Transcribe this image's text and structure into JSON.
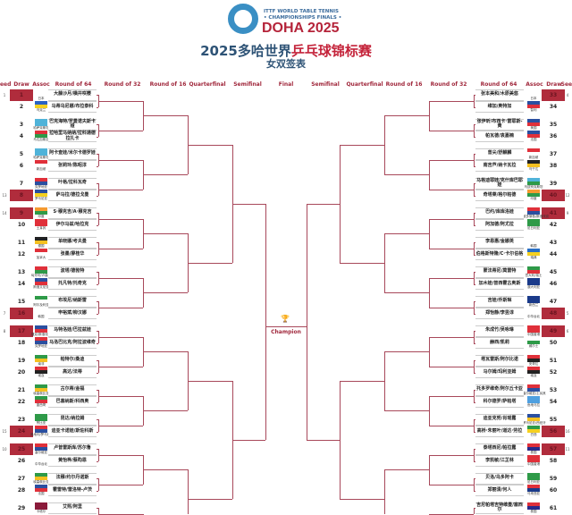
{
  "header": {
    "logo_line1": "ITTF WORLD TABLE TENNIS",
    "logo_line2": "• CHAMPIONSHIPS FINALS •",
    "logo_line3": "DOHA 2025",
    "title_prefix": "2025多哈世界",
    "title_highlight": "乒乓球锦标赛",
    "subtitle": "女双签表"
  },
  "columns": [
    "Seed",
    "Draw",
    "Assoc",
    "Round of 64",
    "Round of 32",
    "Round of 16",
    "Quarterfinal",
    "Semifinal",
    "Final",
    "Semifinal",
    "Quarterfinal",
    "Round of 16",
    "Round of 32",
    "Round of 64",
    "Assoc",
    "Draw",
    "Seed"
  ],
  "center": {
    "trophy_icon": "trophy-icon",
    "champion": "Champion"
  },
  "colors": {
    "accent": "#a0283c",
    "seed_box": "#b02c3c",
    "title": "#2e5376"
  },
  "left": [
    {
      "draw": "1",
      "seed": "1",
      "name": "大藤沙月/横井咲樱",
      "assoc": "日本",
      "flag": [
        "#ffffff",
        "#ffffff"
      ]
    },
    {
      "draw": "2",
      "seed": "",
      "name": "马蒂乌尼娜/布拉泰科",
      "assoc": "乌克兰",
      "flag": [
        "#2a62c4",
        "#f5d020"
      ]
    },
    {
      "draw": "3",
      "seed": "",
      "name": "巴克海特/罗曼诺夫斯卡娅",
      "assoc": "哈萨克斯坦",
      "flag": [
        "#4fb3d9",
        "#4fb3d9"
      ]
    },
    {
      "draw": "4",
      "seed": "",
      "name": "拉哈里马纳纳/拉科通德拉扎卡",
      "assoc": "马达加斯加",
      "flag": [
        "#e0303a",
        "#2e9a48"
      ]
    },
    {
      "draw": "5",
      "seed": "",
      "name": "阿卡查娃/米尔卡德罗娃",
      "assoc": "哈萨克斯坦",
      "flag": [
        "#4fb3d9",
        "#4fb3d9"
      ]
    },
    {
      "draw": "6",
      "seed": "",
      "name": "张莉玲/陈昭淳",
      "assoc": "新加坡",
      "flag": [
        "#e0303a",
        "#ffffff"
      ]
    },
    {
      "draw": "7",
      "seed": "",
      "name": "叶格/拉科瓦奇",
      "assoc": "克罗地亚",
      "flag": [
        "#e0303a",
        "#2a4fa0"
      ]
    },
    {
      "draw": "8",
      "seed": "13",
      "name": "萨马拉/德拉戈曼",
      "assoc": "罗马尼亚",
      "flag": [
        "#2a4fa0",
        "#f5d020"
      ]
    },
    {
      "draw": "9",
      "seed": "14",
      "name": "S·穆克吉/A·穆克吉",
      "assoc": "印度",
      "flag": [
        "#f59a30",
        "#2e9a48"
      ]
    },
    {
      "draw": "10",
      "seed": "",
      "name": "伊尔马兹/哈拉克",
      "assoc": "土耳其",
      "flag": [
        "#e0303a",
        "#e0303a"
      ]
    },
    {
      "draw": "11",
      "seed": "",
      "name": "单晓娜/考夫曼",
      "assoc": "德国",
      "flag": [
        "#222222",
        "#f5c020"
      ]
    },
    {
      "draw": "12",
      "seed": "",
      "name": "张墨/廖桂华",
      "assoc": "加拿大",
      "flag": [
        "#e0303a",
        "#ffffff"
      ]
    },
    {
      "draw": "13",
      "seed": "",
      "name": "波塔/德勃特",
      "assoc": "匈牙利/卢森堡",
      "flag": [
        "#e0303a",
        "#2e9a48"
      ]
    },
    {
      "draw": "14",
      "seed": "",
      "name": "托凡特/托奇克",
      "assoc": "斯洛文尼亚",
      "flag": [
        "#2a4fa0",
        "#e0303a"
      ]
    },
    {
      "draw": "15",
      "seed": "",
      "name": "布埃尼/纳斯雷",
      "assoc": "阿尔及利亚",
      "flag": [
        "#2e9a48",
        "#ffffff"
      ]
    },
    {
      "draw": "16",
      "seed": "7",
      "name": "申裕斌/柳汉娜",
      "assoc": "韩国",
      "flag": [
        "#ffffff",
        "#ffffff"
      ]
    },
    {
      "draw": "17",
      "seed": "8",
      "name": "马特洛娃/巴拉兹娃",
      "assoc": "捷克/斯洛伐克",
      "flag": [
        "#2a4fa0",
        "#e0303a"
      ]
    },
    {
      "draw": "18",
      "seed": "",
      "name": "马洛巴比克/阿拉波维奇",
      "assoc": "克罗地亚",
      "flag": [
        "#e0303a",
        "#2a4fa0"
      ]
    },
    {
      "draw": "19",
      "seed": "",
      "name": "帕特尔/桑迪",
      "assoc": "南非",
      "flag": [
        "#2e9a48",
        "#f5c020"
      ]
    },
    {
      "draw": "20",
      "seed": "",
      "name": "高达/法蒂",
      "assoc": "埃及",
      "flag": [
        "#e0303a",
        "#222222"
      ]
    },
    {
      "draw": "21",
      "seed": "",
      "name": "古尔蒂/金福",
      "assoc": "埃塞俄比亚",
      "flag": [
        "#2e9a48",
        "#f5c020"
      ]
    },
    {
      "draw": "22",
      "seed": "",
      "name": "巴塞纳斯/科西奥",
      "assoc": "墨西哥",
      "flag": [
        "#2e9a48",
        "#e0303a"
      ]
    },
    {
      "draw": "23",
      "seed": "",
      "name": "昆达/纳拉姆",
      "assoc": "赞比亚",
      "flag": [
        "#2e9a48",
        "#2e9a48"
      ]
    },
    {
      "draw": "24",
      "seed": "15",
      "name": "迪亚卡诺娃/斯佐科斯",
      "assoc": "奥地利/罗马尼亚",
      "flag": [
        "#e0303a",
        "#2a4fa0"
      ]
    },
    {
      "draw": "25",
      "seed": "10",
      "name": "卢普雷斯库/苏尔鲁",
      "assoc": "塞尔维亚",
      "flag": [
        "#e0303a",
        "#2a4fa0"
      ]
    },
    {
      "draw": "26",
      "seed": "",
      "name": "黄怡桦/蔡昀恩",
      "assoc": "中华台北",
      "flag": [
        "#ffffff",
        "#ffffff"
      ]
    },
    {
      "draw": "27",
      "seed": "",
      "name": "法穆/约尔丹诺斯",
      "assoc": "埃塞俄比亚",
      "flag": [
        "#2e9a48",
        "#f5c020"
      ]
    },
    {
      "draw": "28",
      "seed": "",
      "name": "霍雷特/雷洛特-卢茨",
      "assoc": "法国",
      "flag": [
        "#2a4fa0",
        "#e0303a"
      ]
    },
    {
      "draw": "29",
      "seed": "",
      "name": "艾熙/阿里",
      "assoc": "卡塔尔",
      "flag": [
        "#8a1a3a",
        "#8a1a3a"
      ]
    }
  ],
  "right": [
    {
      "draw": "33",
      "seed": "4",
      "name": "张本美和/木原美悠",
      "assoc": "日本",
      "flag": [
        "#ffffff",
        "#ffffff"
      ]
    },
    {
      "draw": "34",
      "seed": "",
      "name": "维加/奥特加",
      "assoc": "智利",
      "flag": [
        "#2a4fa0",
        "#e0303a"
      ]
    },
    {
      "draw": "35",
      "seed": "",
      "name": "张伊昕/布西卡·雷耶斯-黄",
      "assoc": "美国",
      "flag": [
        "#2a4fa0",
        "#e0303a"
      ]
    },
    {
      "draw": "36",
      "seed": "",
      "name": "帕瓦德/袁嘉楠",
      "assoc": "法国",
      "flag": [
        "#2a4fa0",
        "#e0303a"
      ]
    },
    {
      "draw": "37",
      "seed": "",
      "name": "曾尖/舒麒麟",
      "assoc": "新加坡",
      "flag": [
        "#e0303a",
        "#ffffff"
      ]
    },
    {
      "draw": "38",
      "seed": "",
      "name": "南吉芦/纳卡瓦拉",
      "assoc": "乌干达",
      "flag": [
        "#222222",
        "#f5c020"
      ]
    },
    {
      "draw": "39",
      "seed": "",
      "name": "马格迪耶娃/克什库巴耶娃",
      "assoc": "乌兹别克斯坦",
      "flag": [
        "#4fb3d9",
        "#2e9a48"
      ]
    },
    {
      "draw": "40",
      "seed": "12",
      "name": "奇塔莱/格尔帕德",
      "assoc": "印度",
      "flag": [
        "#f59a30",
        "#2e9a48"
      ]
    },
    {
      "draw": "41",
      "seed": "9",
      "name": "巴约/库库洛娃",
      "assoc": "波多黎各/斯洛伐克",
      "flag": [
        "#e0303a",
        "#2a4fa0"
      ]
    },
    {
      "draw": "42",
      "seed": "",
      "name": "阿加德/阿尤拉",
      "assoc": "尼日利亚",
      "flag": [
        "#2e9a48",
        "#2e9a48"
      ]
    },
    {
      "draw": "43",
      "seed": "",
      "name": "李恩惠/金娜英",
      "assoc": "韩国",
      "flag": [
        "#ffffff",
        "#ffffff"
      ]
    },
    {
      "draw": "44",
      "seed": "",
      "name": "伯格斯特隆/C·卡尔伯格",
      "assoc": "瑞典",
      "flag": [
        "#2a6fc4",
        "#f5d020"
      ]
    },
    {
      "draw": "45",
      "seed": "",
      "name": "蒙法蒂尼/莫雷特",
      "assoc": "意大利/瑞士",
      "flag": [
        "#2e9a48",
        "#e0303a"
      ]
    },
    {
      "draw": "46",
      "seed": "",
      "name": "加木娃/普西霍古奥斯",
      "assoc": "澳大利亚",
      "flag": [
        "#1a3a8a",
        "#1a3a8a"
      ]
    },
    {
      "draw": "47",
      "seed": "",
      "name": "吉娃/乔斯琳",
      "assoc": "新西兰",
      "flag": [
        "#1a3a8a",
        "#1a3a8a"
      ]
    },
    {
      "draw": "48",
      "seed": "5",
      "name": "郑怡静/李昱谆",
      "assoc": "中华台北",
      "flag": [
        "#ffffff",
        "#ffffff"
      ]
    },
    {
      "draw": "49",
      "seed": "6",
      "name": "朱成竹/吴咏琳",
      "assoc": "中国香港",
      "flag": [
        "#e0303a",
        "#e0303a"
      ]
    },
    {
      "draw": "50",
      "seed": "",
      "name": "赫西/凯莉",
      "assoc": "威尔士",
      "flag": [
        "#ffffff",
        "#2e9a48"
      ]
    },
    {
      "draw": "51",
      "seed": "",
      "name": "塔瓦雷斯/阿尔比诺",
      "assoc": "安哥拉",
      "flag": [
        "#e0303a",
        "#222222"
      ]
    },
    {
      "draw": "52",
      "seed": "",
      "name": "马尔姆/玛利亚姆",
      "assoc": "埃及",
      "flag": [
        "#e0303a",
        "#222222"
      ]
    },
    {
      "draw": "53",
      "seed": "",
      "name": "托多罗维奇/阿尔丘卡亚",
      "assoc": "塞尔维亚/土耳其",
      "flag": [
        "#e0303a",
        "#2a4fa0"
      ]
    },
    {
      "draw": "54",
      "seed": "",
      "name": "科尔德罗/萨帕塔",
      "assoc": "危地马拉",
      "flag": [
        "#4fa0e0",
        "#4fa0e0"
      ]
    },
    {
      "draw": "55",
      "seed": "",
      "name": "迪亚克努/肖瑶露",
      "assoc": "罗马尼亚/西班牙",
      "flag": [
        "#2a4fa0",
        "#f5c020"
      ]
    },
    {
      "draw": "56",
      "seed": "16",
      "name": "高桥·朱丽叶/道达·劳拉",
      "assoc": "巴西",
      "flag": [
        "#2e9a48",
        "#f5d020"
      ]
    },
    {
      "draw": "57",
      "seed": "11",
      "name": "泰塔西尼/帕拉露",
      "assoc": "泰国",
      "flag": [
        "#e0303a",
        "#2a2a8a"
      ]
    },
    {
      "draw": "58",
      "seed": "",
      "name": "李凯敏/江芷林",
      "assoc": "中国香港",
      "flag": [
        "#e0303a",
        "#e0303a"
      ]
    },
    {
      "draw": "59",
      "seed": "",
      "name": "贝洛/乌多阿卡",
      "assoc": "尼日利亚",
      "flag": [
        "#2e9a48",
        "#2e9a48"
      ]
    },
    {
      "draw": "60",
      "seed": "",
      "name": "郑丽清/何人",
      "assoc": "马来西亚",
      "flag": [
        "#e0303a",
        "#1a3a8a"
      ]
    },
    {
      "draw": "61",
      "seed": "",
      "name": "吉尼帕塔吉特维曼/塞西尔",
      "assoc": "泰国",
      "flag": [
        "#e0303a",
        "#2a2a8a"
      ]
    }
  ]
}
